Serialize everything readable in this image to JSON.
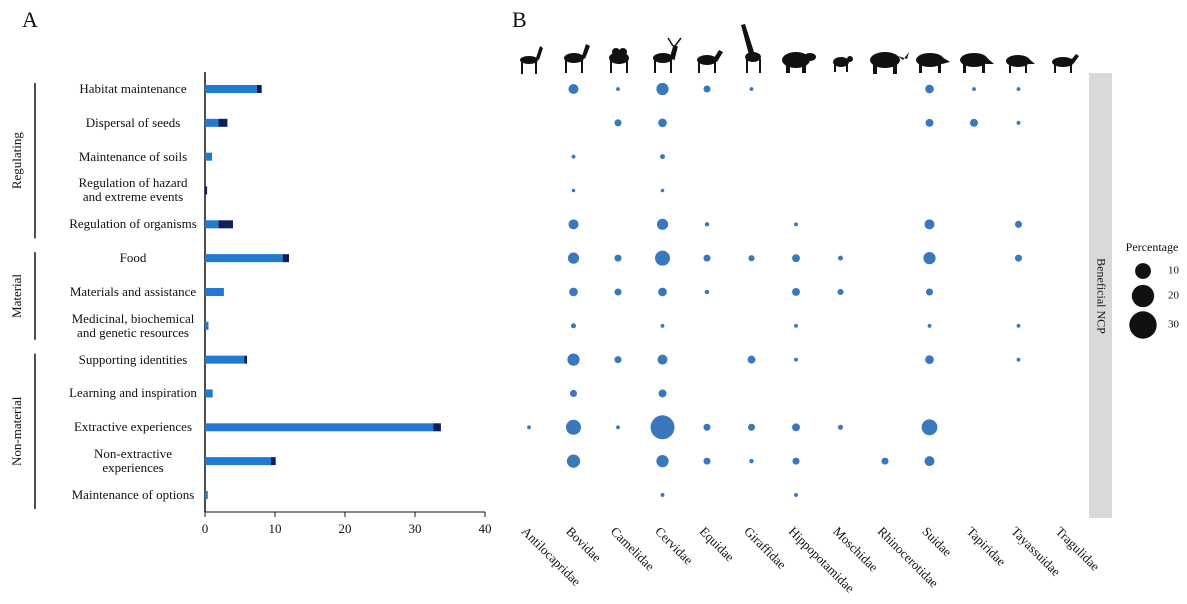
{
  "chart_data": [
    {
      "type": "bar",
      "orientation": "horizontal",
      "stacked": true,
      "label": "A",
      "categories": [
        "Habitat maintenance",
        "Dispersal of seeds",
        "Maintenance of soils",
        "Regulation of hazard\nand extreme events",
        "Regulation of organisms",
        "Food",
        "Materials and assistance",
        "Medicinal, biochemical\nand genetic resources",
        "Supporting identities",
        "Learning and inspiration",
        "Extractive experiences",
        "Non-extractive\nexperiences",
        "Maintenance of options"
      ],
      "groups": [
        {
          "label": "Regulating",
          "size": 5
        },
        {
          "label": "Material",
          "size": 3
        },
        {
          "label": "Non-material",
          "size": 5
        }
      ],
      "series": [
        {
          "color": "#1f7ad0",
          "values": [
            7.4,
            1.9,
            1.0,
            0,
            1.9,
            11.1,
            2.7,
            0.5,
            5.6,
            1.1,
            32.6,
            9.4,
            0.4
          ]
        },
        {
          "color": "#0d1f5c",
          "values": [
            0.7,
            1.3,
            0,
            0.3,
            2.1,
            0.9,
            0,
            0,
            0.4,
            0,
            1.1,
            0.7,
            0
          ]
        }
      ],
      "xlim": [
        0,
        40
      ],
      "xticks": [
        0,
        10,
        20,
        30,
        40
      ]
    },
    {
      "type": "bubble",
      "label": "B",
      "color": "#3a78bd",
      "categories": [
        "Antilocapridae",
        "Bovidae",
        "Camelidae",
        "Cervidae",
        "Equidae",
        "Giraffidae",
        "Hippopotamidae",
        "Moschidae",
        "Rhinocerotidae",
        "Suidae",
        "Tapiridae",
        "Tayassuidae",
        "Tragulidae"
      ],
      "values": [
        [
          null,
          4,
          0.6,
          6,
          2,
          0.6,
          null,
          null,
          null,
          3,
          0.6,
          0.6,
          null
        ],
        [
          null,
          null,
          2,
          3,
          null,
          null,
          null,
          null,
          null,
          2.5,
          2.5,
          0.6,
          null
        ],
        [
          null,
          0.6,
          null,
          1,
          null,
          null,
          null,
          null,
          null,
          null,
          null,
          null,
          null
        ],
        [
          null,
          0.5,
          null,
          0.5,
          null,
          null,
          null,
          null,
          null,
          null,
          null,
          null,
          null
        ],
        [
          null,
          4,
          null,
          5,
          0.8,
          null,
          0.6,
          null,
          null,
          4,
          null,
          2,
          null
        ],
        [
          null,
          5,
          2,
          9,
          2,
          1.5,
          2.5,
          1,
          null,
          6,
          null,
          2,
          null
        ],
        [
          null,
          3,
          2,
          3,
          0.8,
          null,
          2.5,
          1.5,
          null,
          2,
          null,
          null,
          null
        ],
        [
          null,
          1,
          null,
          0.6,
          null,
          null,
          0.6,
          null,
          null,
          0.6,
          null,
          0.6,
          null
        ],
        [
          null,
          6,
          2,
          4,
          null,
          2.5,
          0.6,
          null,
          null,
          3,
          null,
          0.6,
          null
        ],
        [
          null,
          2,
          null,
          2.5,
          null,
          null,
          null,
          null,
          null,
          null,
          null,
          null,
          null
        ],
        [
          0.6,
          9,
          0.6,
          23,
          2,
          2,
          2.5,
          1,
          null,
          10,
          null,
          null,
          null
        ],
        [
          null,
          7,
          null,
          6,
          2,
          0.8,
          2,
          null,
          2,
          4,
          null,
          null,
          null
        ],
        [
          null,
          null,
          null,
          0.6,
          null,
          null,
          0.6,
          null,
          null,
          null,
          null,
          null,
          null
        ]
      ],
      "facet_label": "Beneficial NCP",
      "size_legend": {
        "title": "Percentage",
        "values": [
          10,
          20,
          30
        ]
      }
    }
  ]
}
